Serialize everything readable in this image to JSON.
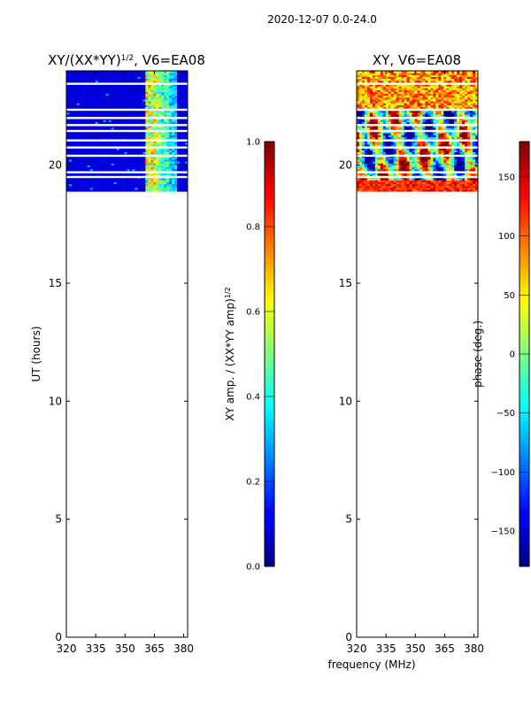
{
  "suptitle": "2020-12-07 0.0-24.0",
  "chart_data": [
    {
      "type": "heatmap",
      "title": "XY/(XX*YY)",
      "title_sup": "1/2",
      "title_suffix": ", V6=EA08",
      "xlabel": "",
      "ylabel": "UT (hours)",
      "xlim": [
        320,
        382
      ],
      "ylim": [
        0,
        24
      ],
      "xticks": [
        320,
        335,
        350,
        365,
        380
      ],
      "yticks": [
        0,
        5,
        10,
        15,
        20
      ],
      "data_ut_range": [
        18.9,
        24
      ],
      "hot_channels": [
        {
          "freq_from": 361,
          "freq_to": 366,
          "level": 0.62
        },
        {
          "freq_from": 366,
          "freq_to": 369,
          "level": 0.55
        },
        {
          "freq_from": 369,
          "freq_to": 373,
          "level": 0.45
        },
        {
          "freq_from": 373,
          "freq_to": 376,
          "level": 0.33
        }
      ],
      "flagged_ut_rows": [
        23.45,
        22.35,
        22.0,
        21.7,
        21.45,
        21.05,
        20.75,
        20.4,
        19.7,
        19.5
      ],
      "colorbar": {
        "label": "XY amp. / (XX*YY amp)",
        "label_sup": "1/2",
        "colormap": "jet",
        "range": [
          0.0,
          1.0
        ],
        "ticks": [
          "0.0",
          "0.2",
          "0.4",
          "0.6",
          "0.8",
          "1.0"
        ]
      }
    },
    {
      "type": "heatmap",
      "title": "XY, V6=EA08",
      "xlabel": "frequency (MHz)",
      "ylabel": "",
      "xlim": [
        320,
        382
      ],
      "ylim": [
        0,
        24
      ],
      "xticks": [
        320,
        335,
        350,
        365,
        380
      ],
      "yticks": [
        0,
        5,
        10,
        15,
        20
      ],
      "data_ut_range": [
        18.9,
        24
      ],
      "flagged_ut_rows": [
        23.45,
        22.35,
        22.0,
        21.7,
        21.45,
        21.05,
        20.75,
        20.4,
        19.7,
        19.5
      ],
      "colorbar": {
        "label": "phase (deg.)",
        "colormap": "jet",
        "range": [
          -180,
          180
        ],
        "ticks": [
          "−150",
          "−100",
          "−50",
          "0",
          "50",
          "100",
          "150"
        ]
      }
    }
  ]
}
